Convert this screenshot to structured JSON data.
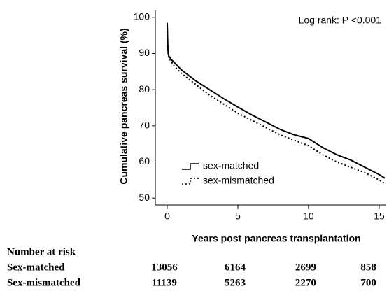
{
  "chart_data": {
    "type": "line",
    "annotation": "Log rank: P <0.001",
    "xlabel": "Years post pancreas transplantation",
    "ylabel": "Cumulative pancreas survival (%)",
    "x": [
      0,
      0.05,
      0.1,
      0.25,
      0.5,
      1,
      1.5,
      2,
      3,
      4,
      5,
      6,
      7,
      8,
      9,
      10,
      11,
      12,
      13,
      14,
      15,
      15.4
    ],
    "series": [
      {
        "name": "sex-matched",
        "color": "#000000",
        "linestyle": "solid",
        "values": [
          98.5,
          91,
          89.5,
          88.5,
          87.5,
          85.5,
          84,
          82.5,
          80,
          77.5,
          75.2,
          73,
          71,
          69,
          67.5,
          66.5,
          64,
          62,
          60.5,
          58.5,
          56.5,
          55.5
        ]
      },
      {
        "name": "sex-mismatched",
        "color": "#000000",
        "linestyle": "dotted",
        "values": [
          98,
          90.5,
          89,
          88,
          86.5,
          84.5,
          83,
          81.5,
          78.5,
          76,
          73.5,
          71.5,
          69.5,
          67.5,
          66,
          64.5,
          62,
          60,
          58.5,
          57,
          55,
          54
        ]
      }
    ],
    "xlim": [
      -0.84,
      15.5
    ],
    "ylim": [
      48.1,
      101.9
    ],
    "xticks": [
      0,
      5,
      10,
      15
    ],
    "yticks": [
      50,
      60,
      70,
      80,
      90,
      100
    ],
    "legend": "lower-left",
    "risk_table": {
      "header": "Number at risk",
      "rows": [
        {
          "label": "Sex-matched",
          "values": [
            13056,
            6164,
            2699,
            858
          ]
        },
        {
          "label": "Sex-mismatched",
          "values": [
            11139,
            5263,
            2270,
            700
          ]
        }
      ]
    }
  }
}
